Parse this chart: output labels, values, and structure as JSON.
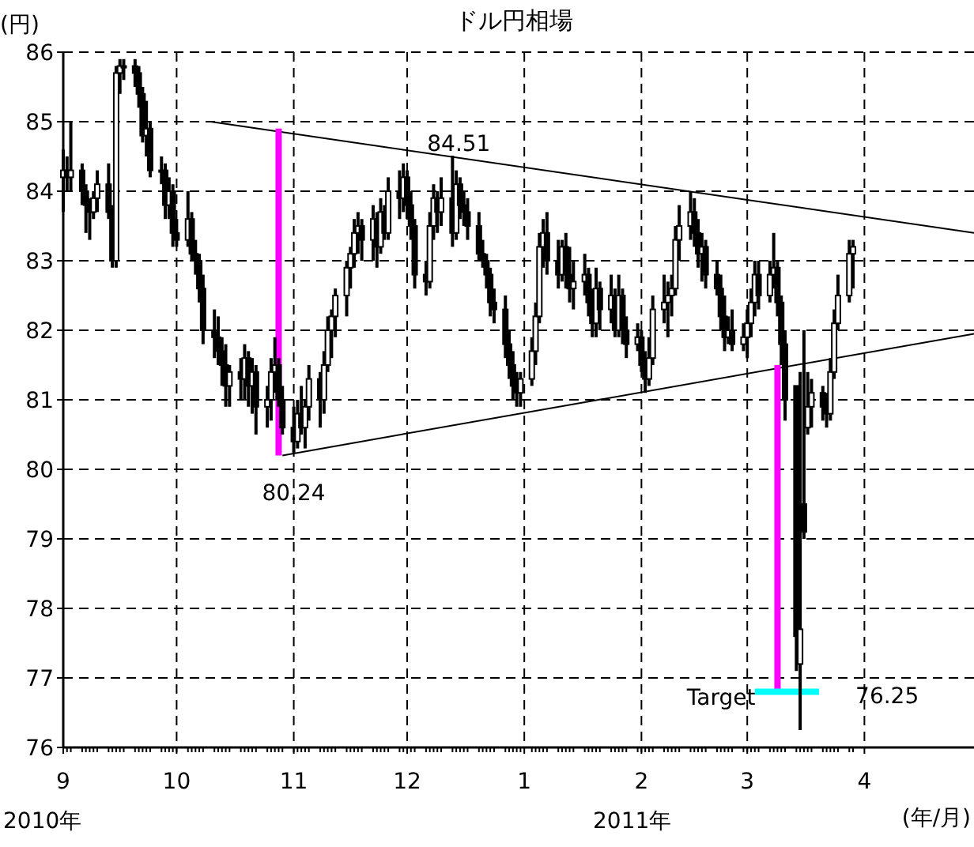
{
  "chart_data": {
    "type": "candlestick",
    "title": "ドル円相場",
    "ylabel": "(円)",
    "xlabel": "(年/月)",
    "xlim": [
      "2010-09-01",
      "2011-04-30"
    ],
    "ylim": [
      76,
      86
    ],
    "yticks": [
      76,
      77,
      78,
      79,
      80,
      81,
      82,
      83,
      84,
      85,
      86
    ],
    "xticks": [
      {
        "value": "2010-09-01",
        "label": "9"
      },
      {
        "value": "2010-10-01",
        "label": "10"
      },
      {
        "value": "2010-11-01",
        "label": "11"
      },
      {
        "value": "2010-12-01",
        "label": "12"
      },
      {
        "value": "2011-01-01",
        "label": "1"
      },
      {
        "value": "2011-02-01",
        "label": "2"
      },
      {
        "value": "2011-03-01",
        "label": "3"
      },
      {
        "value": "2011-04-01",
        "label": "4"
      }
    ],
    "grid": true,
    "color": "#000000",
    "x": [
      "2010-09-01",
      "2010-09-02",
      "2010-09-03",
      "2010-09-06",
      "2010-09-07",
      "2010-09-08",
      "2010-09-09",
      "2010-09-10",
      "2010-09-13",
      "2010-09-14",
      "2010-09-15",
      "2010-09-16",
      "2010-09-17",
      "2010-09-20",
      "2010-09-21",
      "2010-09-22",
      "2010-09-23",
      "2010-09-24",
      "2010-09-27",
      "2010-09-28",
      "2010-09-29",
      "2010-09-30",
      "2010-10-01",
      "2010-10-04",
      "2010-10-05",
      "2010-10-06",
      "2010-10-07",
      "2010-10-08",
      "2010-10-11",
      "2010-10-12",
      "2010-10-13",
      "2010-10-14",
      "2010-10-15",
      "2010-10-18",
      "2010-10-19",
      "2010-10-20",
      "2010-10-21",
      "2010-10-22",
      "2010-10-25",
      "2010-10-26",
      "2010-10-27",
      "2010-10-28",
      "2010-10-29",
      "2010-11-01",
      "2010-11-02",
      "2010-11-03",
      "2010-11-04",
      "2010-11-05",
      "2010-11-08",
      "2010-11-09",
      "2010-11-10",
      "2010-11-11",
      "2010-11-12",
      "2010-11-15",
      "2010-11-16",
      "2010-11-17",
      "2010-11-18",
      "2010-11-19",
      "2010-11-22",
      "2010-11-23",
      "2010-11-24",
      "2010-11-25",
      "2010-11-26",
      "2010-11-29",
      "2010-11-30",
      "2010-12-01",
      "2010-12-02",
      "2010-12-03",
      "2010-12-06",
      "2010-12-07",
      "2010-12-08",
      "2010-12-09",
      "2010-12-10",
      "2010-12-13",
      "2010-12-14",
      "2010-12-15",
      "2010-12-16",
      "2010-12-17",
      "2010-12-20",
      "2010-12-21",
      "2010-12-22",
      "2010-12-23",
      "2010-12-24",
      "2010-12-27",
      "2010-12-28",
      "2010-12-29",
      "2010-12-30",
      "2010-12-31",
      "2011-01-03",
      "2011-01-04",
      "2011-01-05",
      "2011-01-06",
      "2011-01-07",
      "2011-01-10",
      "2011-01-11",
      "2011-01-12",
      "2011-01-13",
      "2011-01-14",
      "2011-01-17",
      "2011-01-18",
      "2011-01-19",
      "2011-01-20",
      "2011-01-21",
      "2011-01-24",
      "2011-01-25",
      "2011-01-26",
      "2011-01-27",
      "2011-01-28",
      "2011-01-31",
      "2011-02-01",
      "2011-02-02",
      "2011-02-03",
      "2011-02-04",
      "2011-02-07",
      "2011-02-08",
      "2011-02-09",
      "2011-02-10",
      "2011-02-11",
      "2011-02-14",
      "2011-02-15",
      "2011-02-16",
      "2011-02-17",
      "2011-02-18",
      "2011-02-21",
      "2011-02-22",
      "2011-02-23",
      "2011-02-24",
      "2011-02-25",
      "2011-02-28",
      "2011-03-01",
      "2011-03-02",
      "2011-03-03",
      "2011-03-04",
      "2011-03-07",
      "2011-03-08",
      "2011-03-09",
      "2011-03-10",
      "2011-03-11",
      "2011-03-14",
      "2011-03-15",
      "2011-03-16",
      "2011-03-17",
      "2011-03-18",
      "2011-03-21",
      "2011-03-22",
      "2011-03-23",
      "2011-03-24",
      "2011-03-25",
      "2011-03-28",
      "2011-03-29"
    ],
    "ohlc": [
      [
        84.2,
        84.6,
        83.7,
        84.3
      ],
      [
        84.3,
        84.5,
        84.0,
        84.2
      ],
      [
        84.2,
        85.0,
        84.0,
        84.3
      ],
      [
        84.3,
        84.4,
        83.8,
        84.0
      ],
      [
        84.0,
        84.1,
        83.4,
        83.8
      ],
      [
        83.8,
        83.9,
        83.3,
        83.7
      ],
      [
        83.7,
        84.0,
        83.6,
        83.9
      ],
      [
        83.9,
        84.3,
        83.7,
        84.1
      ],
      [
        84.1,
        84.4,
        83.6,
        83.7
      ],
      [
        83.7,
        83.8,
        82.9,
        83.0
      ],
      [
        83.0,
        85.8,
        82.9,
        85.7
      ],
      [
        85.7,
        85.9,
        85.4,
        85.8
      ],
      [
        85.8,
        85.9,
        85.6,
        85.8
      ],
      [
        85.8,
        85.9,
        85.5,
        85.7
      ],
      [
        85.7,
        85.8,
        85.2,
        85.4
      ],
      [
        85.4,
        85.5,
        84.7,
        84.8
      ],
      [
        84.8,
        85.3,
        84.5,
        84.9
      ],
      [
        84.9,
        85.0,
        84.2,
        84.3
      ],
      [
        84.3,
        84.5,
        84.1,
        84.3
      ],
      [
        84.3,
        84.4,
        83.6,
        83.8
      ],
      [
        83.8,
        84.2,
        83.6,
        84.0
      ],
      [
        84.0,
        84.1,
        83.2,
        83.4
      ],
      [
        83.4,
        83.6,
        83.2,
        83.3
      ],
      [
        83.3,
        84.0,
        83.2,
        83.6
      ],
      [
        83.6,
        83.7,
        83.0,
        83.1
      ],
      [
        83.1,
        83.3,
        82.8,
        83.0
      ],
      [
        83.0,
        83.1,
        82.4,
        82.6
      ],
      [
        82.6,
        82.8,
        81.8,
        82.0
      ],
      [
        82.0,
        82.3,
        81.6,
        81.9
      ],
      [
        81.9,
        82.2,
        81.5,
        81.7
      ],
      [
        81.7,
        81.9,
        81.2,
        81.5
      ],
      [
        81.5,
        81.8,
        80.9,
        81.2
      ],
      [
        81.2,
        81.5,
        80.9,
        81.4
      ],
      [
        81.4,
        81.6,
        81.0,
        81.3
      ],
      [
        81.3,
        81.8,
        81.0,
        81.6
      ],
      [
        81.6,
        81.7,
        80.9,
        81.2
      ],
      [
        81.2,
        81.6,
        80.8,
        81.4
      ],
      [
        81.4,
        81.5,
        80.5,
        80.9
      ],
      [
        80.9,
        81.2,
        80.6,
        81.0
      ],
      [
        81.0,
        81.6,
        80.7,
        81.4
      ],
      [
        81.4,
        81.9,
        81.1,
        81.5
      ],
      [
        81.5,
        81.6,
        80.9,
        81.0
      ],
      [
        81.0,
        81.2,
        80.5,
        80.6
      ],
      [
        80.6,
        80.9,
        80.24,
        80.4
      ],
      [
        80.4,
        81.0,
        80.3,
        80.8
      ],
      [
        80.8,
        81.2,
        80.5,
        80.6
      ],
      [
        80.6,
        81.0,
        80.3,
        80.9
      ],
      [
        80.9,
        81.5,
        80.7,
        81.3
      ],
      [
        81.3,
        81.4,
        80.6,
        81.0
      ],
      [
        81.0,
        81.7,
        80.8,
        81.5
      ],
      [
        81.5,
        82.2,
        81.4,
        82.0
      ],
      [
        82.0,
        82.3,
        81.6,
        82.2
      ],
      [
        82.2,
        82.6,
        81.9,
        82.5
      ],
      [
        82.5,
        83.0,
        82.2,
        82.9
      ],
      [
        82.9,
        83.2,
        82.6,
        83.1
      ],
      [
        83.1,
        83.6,
        82.9,
        83.4
      ],
      [
        83.4,
        83.7,
        83.1,
        83.5
      ],
      [
        83.5,
        83.6,
        83.0,
        83.3
      ],
      [
        83.3,
        83.8,
        83.0,
        83.6
      ],
      [
        83.6,
        83.7,
        82.9,
        83.2
      ],
      [
        83.2,
        83.9,
        83.1,
        83.7
      ],
      [
        83.7,
        83.8,
        83.3,
        83.4
      ],
      [
        83.4,
        84.2,
        83.3,
        84.0
      ],
      [
        84.0,
        84.3,
        83.6,
        83.9
      ],
      [
        83.9,
        84.4,
        83.7,
        84.2
      ],
      [
        84.2,
        84.3,
        83.6,
        83.8
      ],
      [
        83.8,
        84.0,
        83.3,
        83.5
      ],
      [
        83.5,
        83.6,
        82.6,
        82.8
      ],
      [
        82.8,
        83.0,
        82.5,
        82.7
      ],
      [
        82.7,
        83.7,
        82.6,
        83.5
      ],
      [
        83.5,
        84.1,
        83.3,
        83.9
      ],
      [
        83.9,
        84.0,
        83.4,
        83.7
      ],
      [
        83.7,
        84.2,
        83.5,
        83.9
      ],
      [
        83.9,
        84.51,
        83.2,
        83.4
      ],
      [
        83.4,
        84.3,
        83.3,
        84.1
      ],
      [
        84.1,
        84.2,
        83.6,
        83.8
      ],
      [
        83.8,
        84.0,
        83.5,
        83.7
      ],
      [
        83.7,
        83.9,
        83.3,
        83.5
      ],
      [
        83.5,
        83.7,
        83.0,
        83.1
      ],
      [
        83.1,
        83.3,
        82.9,
        83.0
      ],
      [
        83.0,
        83.1,
        82.6,
        82.8
      ],
      [
        82.8,
        82.9,
        82.2,
        82.4
      ],
      [
        82.4,
        82.6,
        82.1,
        82.3
      ],
      [
        82.3,
        82.5,
        81.6,
        81.8
      ],
      [
        81.8,
        82.0,
        81.3,
        81.5
      ],
      [
        81.5,
        81.7,
        81.0,
        81.2
      ],
      [
        81.2,
        81.4,
        80.9,
        81.1
      ],
      [
        81.1,
        81.4,
        80.9,
        81.3
      ],
      [
        81.3,
        81.9,
        81.2,
        81.7
      ],
      [
        81.7,
        82.4,
        81.5,
        82.2
      ],
      [
        82.2,
        83.4,
        82.1,
        83.2
      ],
      [
        83.2,
        83.6,
        82.9,
        83.4
      ],
      [
        83.4,
        83.7,
        82.8,
        83.0
      ],
      [
        83.0,
        83.3,
        82.6,
        82.8
      ],
      [
        82.8,
        83.3,
        82.7,
        83.2
      ],
      [
        83.2,
        83.4,
        82.6,
        82.8
      ],
      [
        82.8,
        83.2,
        82.4,
        82.6
      ],
      [
        82.6,
        83.0,
        82.3,
        82.7
      ],
      [
        82.7,
        83.1,
        82.5,
        82.8
      ],
      [
        82.8,
        82.9,
        82.2,
        82.4
      ],
      [
        82.4,
        82.6,
        81.9,
        82.1
      ],
      [
        82.1,
        82.9,
        81.9,
        82.6
      ],
      [
        82.6,
        82.7,
        82.0,
        82.3
      ],
      [
        82.3,
        82.8,
        82.1,
        82.5
      ],
      [
        82.5,
        82.6,
        81.9,
        82.0
      ],
      [
        82.0,
        82.8,
        81.9,
        82.5
      ],
      [
        82.5,
        82.6,
        81.8,
        82.0
      ],
      [
        82.0,
        82.2,
        81.6,
        81.8
      ],
      [
        81.8,
        82.1,
        81.7,
        81.9
      ],
      [
        81.9,
        82.0,
        81.4,
        81.5
      ],
      [
        81.5,
        81.7,
        81.1,
        81.3
      ],
      [
        81.3,
        81.9,
        81.2,
        81.6
      ],
      [
        81.6,
        82.5,
        81.5,
        82.3
      ],
      [
        82.3,
        82.8,
        82.1,
        82.4
      ],
      [
        82.4,
        82.7,
        81.9,
        82.5
      ],
      [
        82.5,
        82.8,
        82.2,
        82.6
      ],
      [
        82.6,
        83.5,
        82.5,
        83.3
      ],
      [
        83.3,
        83.8,
        83.0,
        83.5
      ],
      [
        83.5,
        84.0,
        83.3,
        83.7
      ],
      [
        83.7,
        83.9,
        83.2,
        83.4
      ],
      [
        83.4,
        83.6,
        82.9,
        83.1
      ],
      [
        83.1,
        83.4,
        82.7,
        83.2
      ],
      [
        83.2,
        83.3,
        82.6,
        82.8
      ],
      [
        82.8,
        83.0,
        82.5,
        82.6
      ],
      [
        82.6,
        82.8,
        82.0,
        82.2
      ],
      [
        82.2,
        82.5,
        81.7,
        81.9
      ],
      [
        81.9,
        82.2,
        81.8,
        82.0
      ],
      [
        82.0,
        82.3,
        81.7,
        81.8
      ],
      [
        81.8,
        82.1,
        81.7,
        81.9
      ],
      [
        81.9,
        82.3,
        81.6,
        82.1
      ],
      [
        82.1,
        82.6,
        81.9,
        82.4
      ],
      [
        82.4,
        83.0,
        82.2,
        82.8
      ],
      [
        82.8,
        83.0,
        82.3,
        82.5
      ],
      [
        82.5,
        83.0,
        82.4,
        82.8
      ],
      [
        82.8,
        83.4,
        82.6,
        82.9
      ],
      [
        82.9,
        83.0,
        82.2,
        82.4
      ],
      [
        82.4,
        82.5,
        81.5,
        81.8
      ],
      [
        81.8,
        82.0,
        80.7,
        81.0
      ],
      [
        81.2,
        81.2,
        77.1,
        77.6
      ],
      [
        77.2,
        81.4,
        76.25,
        77.7
      ],
      [
        79.5,
        82.0,
        79.0,
        79.1
      ],
      [
        80.6,
        81.4,
        80.5,
        80.9
      ],
      [
        80.9,
        81.3,
        80.6,
        81.1
      ],
      [
        81.1,
        81.2,
        80.7,
        80.9
      ],
      [
        80.9,
        81.1,
        80.6,
        80.8
      ],
      [
        80.8,
        81.6,
        80.7,
        81.4
      ],
      [
        81.4,
        82.3,
        81.3,
        82.1
      ],
      [
        82.1,
        82.8,
        82.0,
        82.5
      ],
      [
        82.5,
        83.3,
        82.4,
        83.1
      ],
      [
        83.1,
        83.3,
        82.6,
        83.2
      ]
    ],
    "series": [
      {
        "type": "line",
        "color": "#000000",
        "x": [
          "2010-10-10",
          "2011-04-30"
        ],
        "values": [
          85.0,
          83.4
        ]
      },
      {
        "type": "line",
        "color": "#000000",
        "x": [
          "2010-10-29",
          "2011-04-30"
        ],
        "values": [
          80.2,
          81.95
        ]
      },
      {
        "type": "line",
        "color": "#ff00ff",
        "x": [
          "2010-10-28",
          "2010-10-28"
        ],
        "values": [
          84.9,
          80.2
        ]
      },
      {
        "type": "line",
        "color": "#ff00ff",
        "x": [
          "2011-03-09",
          "2011-03-09"
        ],
        "values": [
          81.5,
          76.8
        ]
      },
      {
        "type": "line",
        "color": "#00ffff",
        "x": [
          "2011-03-03",
          "2011-03-20"
        ],
        "values": [
          76.8,
          76.8
        ]
      }
    ],
    "annotations": [
      {
        "text": "84.51",
        "x": "2010-12-13",
        "y": 84.51
      },
      {
        "text": "80.24",
        "x": "2010-11-01",
        "y": 80.24
      },
      {
        "text": "Target",
        "x": "2011-03-09",
        "y": 76.8
      },
      {
        "text": "76.25",
        "x": "2011-03-15",
        "y": 76.25
      },
      "2010年",
      "2011年"
    ]
  }
}
